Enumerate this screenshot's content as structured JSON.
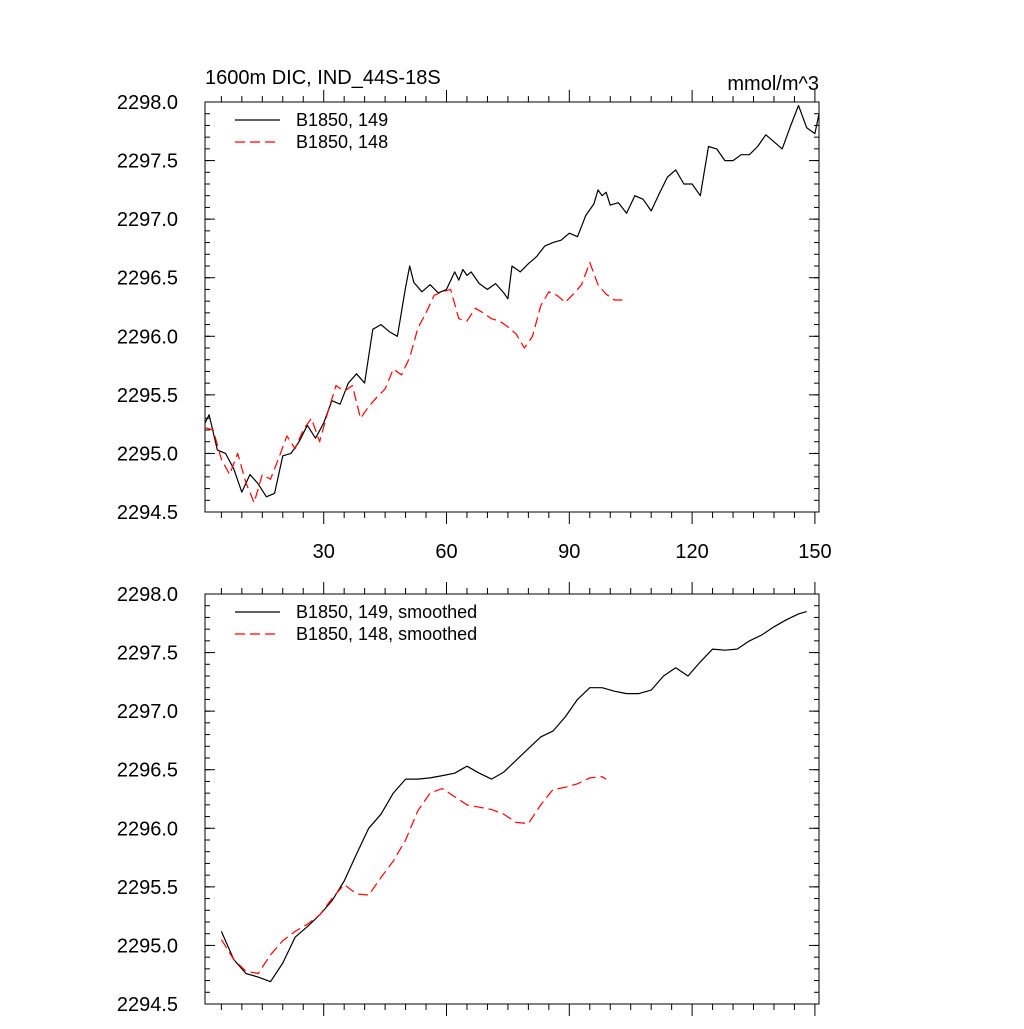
{
  "page": {
    "title": "1600m DIC, IND_44S-18S",
    "units": "mmol/m^3"
  },
  "colors": {
    "series_149": "#000000",
    "series_148": "#ff0000",
    "axis": "#000000",
    "background": "#ffffff"
  },
  "chart_data": [
    {
      "type": "line",
      "title": "1600m DIC, IND_44S-18S",
      "units_label": "mmol/m^3",
      "xlim": [
        1,
        151
      ],
      "ylim": [
        2294.5,
        2298.0
      ],
      "x_ticks": [
        30,
        60,
        90,
        120,
        150
      ],
      "x_tick_labels": [
        "30",
        "60",
        "90",
        "120",
        "150"
      ],
      "y_ticks": [
        2294.5,
        2295.0,
        2295.5,
        2296.0,
        2296.5,
        2297.0,
        2297.5,
        2298.0
      ],
      "y_tick_labels": [
        "2294.5",
        "2295.0",
        "2295.5",
        "2296.0",
        "2296.5",
        "2297.0",
        "2297.5",
        "2298.0"
      ],
      "grid": false,
      "legend_position": "top-left",
      "series": [
        {
          "name": "B1850, 149",
          "style": "solid",
          "color": "#000000",
          "x": [
            1,
            2,
            4,
            6,
            8,
            10,
            12,
            14,
            16,
            18,
            20,
            22,
            24,
            26,
            28,
            30,
            32,
            34,
            36,
            38,
            40,
            42,
            44,
            46,
            48,
            50,
            51,
            52,
            54,
            56,
            58,
            60,
            62,
            63,
            64,
            65,
            66,
            68,
            70,
            72,
            74,
            75,
            76,
            78,
            80,
            82,
            84,
            86,
            88,
            90,
            92,
            94,
            96,
            97,
            98,
            99,
            100,
            102,
            104,
            106,
            108,
            110,
            112,
            114,
            116,
            118,
            120,
            122,
            124,
            126,
            128,
            130,
            132,
            134,
            136,
            138,
            140,
            142,
            144,
            146,
            148,
            150,
            151
          ],
          "y": [
            2295.26,
            2295.33,
            2295.03,
            2295.0,
            2294.87,
            2294.67,
            2294.82,
            2294.74,
            2294.63,
            2294.66,
            2294.98,
            2295.0,
            2295.1,
            2295.24,
            2295.13,
            2295.26,
            2295.45,
            2295.42,
            2295.6,
            2295.68,
            2295.6,
            2296.06,
            2296.1,
            2296.04,
            2296.0,
            2296.42,
            2296.6,
            2296.46,
            2296.38,
            2296.44,
            2296.37,
            2296.4,
            2296.55,
            2296.48,
            2296.57,
            2296.52,
            2296.55,
            2296.45,
            2296.4,
            2296.45,
            2296.37,
            2296.32,
            2296.6,
            2296.55,
            2296.62,
            2296.68,
            2296.77,
            2296.8,
            2296.82,
            2296.88,
            2296.85,
            2297.03,
            2297.13,
            2297.25,
            2297.2,
            2297.23,
            2297.12,
            2297.14,
            2297.05,
            2297.2,
            2297.17,
            2297.07,
            2297.22,
            2297.36,
            2297.42,
            2297.3,
            2297.3,
            2297.2,
            2297.62,
            2297.6,
            2297.5,
            2297.5,
            2297.55,
            2297.55,
            2297.62,
            2297.72,
            2297.66,
            2297.6,
            2297.79,
            2297.97,
            2297.78,
            2297.73,
            2297.9
          ]
        },
        {
          "name": "B1850, 148",
          "style": "dashed",
          "color": "#ff0000",
          "x": [
            1,
            3,
            5,
            7,
            9,
            11,
            13,
            15,
            17,
            19,
            21,
            23,
            25,
            27,
            29,
            31,
            33,
            35,
            37,
            39,
            41,
            43,
            45,
            47,
            49,
            51,
            53,
            55,
            57,
            59,
            61,
            63,
            65,
            67,
            69,
            71,
            73,
            75,
            77,
            79,
            81,
            83,
            85,
            87,
            89,
            91,
            93,
            95,
            97,
            99,
            101,
            103
          ],
          "y": [
            2295.22,
            2295.2,
            2294.95,
            2294.82,
            2295.0,
            2294.75,
            2294.58,
            2294.82,
            2294.78,
            2294.96,
            2295.15,
            2295.04,
            2295.2,
            2295.3,
            2295.1,
            2295.35,
            2295.58,
            2295.53,
            2295.58,
            2295.3,
            2295.4,
            2295.48,
            2295.55,
            2295.72,
            2295.67,
            2295.82,
            2296.07,
            2296.2,
            2296.35,
            2296.38,
            2296.4,
            2296.15,
            2296.13,
            2296.24,
            2296.2,
            2296.15,
            2296.13,
            2296.08,
            2296.02,
            2295.9,
            2296.0,
            2296.26,
            2296.38,
            2296.35,
            2296.29,
            2296.36,
            2296.44,
            2296.63,
            2296.44,
            2296.36,
            2296.31,
            2296.31
          ]
        }
      ]
    },
    {
      "type": "line",
      "title": "",
      "xlim": [
        1,
        151
      ],
      "ylim": [
        2294.5,
        2298.0
      ],
      "x_ticks": [
        30,
        60,
        90,
        120,
        150
      ],
      "x_tick_labels": [],
      "y_ticks": [
        2294.5,
        2295.0,
        2295.5,
        2296.0,
        2296.5,
        2297.0,
        2297.5,
        2298.0
      ],
      "y_tick_labels": [
        "2294.5",
        "2295.0",
        "2295.5",
        "2296.0",
        "2296.5",
        "2297.0",
        "2297.5",
        "2298.0"
      ],
      "grid": false,
      "legend_position": "top-left",
      "series": [
        {
          "name": "B1850, 149, smoothed",
          "style": "solid",
          "color": "#000000",
          "x": [
            5,
            8,
            11,
            14,
            17,
            20,
            23,
            26,
            29,
            32,
            35,
            38,
            41,
            44,
            47,
            50,
            53,
            56,
            59,
            62,
            65,
            68,
            71,
            74,
            77,
            80,
            83,
            86,
            89,
            92,
            95,
            98,
            101,
            104,
            107,
            110,
            113,
            116,
            119,
            122,
            125,
            128,
            131,
            134,
            137,
            140,
            143,
            146,
            148
          ],
          "y": [
            2295.12,
            2294.88,
            2294.76,
            2294.73,
            2294.69,
            2294.85,
            2295.07,
            2295.16,
            2295.26,
            2295.38,
            2295.55,
            2295.78,
            2296.0,
            2296.12,
            2296.3,
            2296.42,
            2296.42,
            2296.43,
            2296.45,
            2296.47,
            2296.53,
            2296.47,
            2296.42,
            2296.48,
            2296.58,
            2296.68,
            2296.78,
            2296.83,
            2296.95,
            2297.1,
            2297.2,
            2297.2,
            2297.17,
            2297.15,
            2297.15,
            2297.18,
            2297.3,
            2297.37,
            2297.3,
            2297.42,
            2297.53,
            2297.52,
            2297.53,
            2297.6,
            2297.65,
            2297.72,
            2297.78,
            2297.83,
            2297.85
          ]
        },
        {
          "name": "B1850, 148, smoothed",
          "style": "dashed",
          "color": "#ff0000",
          "x": [
            5,
            8,
            11,
            14,
            17,
            20,
            23,
            26,
            29,
            32,
            35,
            38,
            41,
            44,
            47,
            50,
            53,
            56,
            59,
            62,
            65,
            68,
            71,
            74,
            77,
            80,
            83,
            86,
            89,
            92,
            95,
            98,
            99
          ],
          "y": [
            2295.05,
            2294.88,
            2294.78,
            2294.76,
            2294.92,
            2295.04,
            2295.12,
            2295.18,
            2295.26,
            2295.4,
            2295.52,
            2295.44,
            2295.43,
            2295.58,
            2295.72,
            2295.9,
            2296.15,
            2296.3,
            2296.34,
            2296.27,
            2296.2,
            2296.18,
            2296.16,
            2296.12,
            2296.05,
            2296.04,
            2296.2,
            2296.33,
            2296.35,
            2296.38,
            2296.43,
            2296.44,
            2296.42
          ]
        }
      ]
    }
  ]
}
